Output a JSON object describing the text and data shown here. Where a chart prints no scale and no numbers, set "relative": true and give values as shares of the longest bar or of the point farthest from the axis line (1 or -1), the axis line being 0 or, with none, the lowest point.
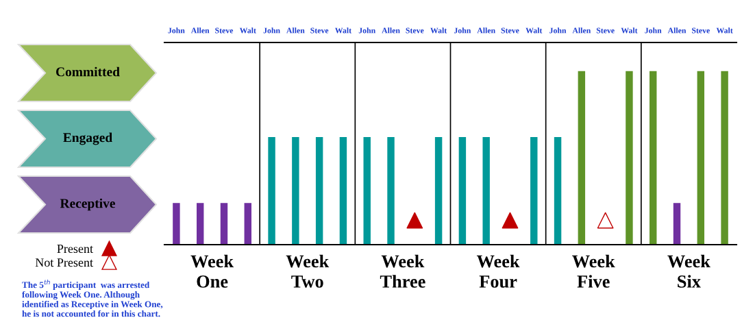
{
  "chart_data": {
    "type": "bar",
    "relative": true,
    "categories": [
      "John",
      "Allen",
      "Steve",
      "Walt",
      "John",
      "Allen",
      "Steve",
      "Walt",
      "John",
      "Allen",
      "Steve",
      "Walt",
      "John",
      "Allen",
      "Steve",
      "Walt",
      "John",
      "Allen",
      "Steve",
      "Walt",
      "John",
      "Allen",
      "Steve",
      "Walt"
    ],
    "series": [
      {
        "values": [
          0.24,
          0.24,
          0.24,
          0.24,
          0.62,
          0.62,
          0.62,
          0.62,
          0.62,
          0.62,
          null,
          0.62,
          0.62,
          0.62,
          null,
          0.62,
          0.62,
          1,
          null,
          1,
          1,
          0.24,
          1,
          1
        ],
        "colors": [
          "#7030a0",
          "#7030a0",
          "#7030a0",
          "#7030a0",
          "#009999",
          "#009999",
          "#009999",
          "#009999",
          "#009999",
          "#009999",
          null,
          "#009999",
          "#009999",
          "#009999",
          null,
          "#009999",
          "#009999",
          "#5f9428",
          null,
          "#5f9428",
          "#5f9428",
          "#7030a0",
          "#5f9428",
          "#5f9428"
        ]
      },
      {
        "type": "scatter",
        "name": "Present",
        "color": "#c00000",
        "marker": "triangle",
        "values": [
          null,
          null,
          null,
          null,
          null,
          null,
          null,
          null,
          null,
          null,
          0.14,
          null,
          null,
          null,
          0.14,
          null,
          null,
          null,
          null,
          null,
          null,
          null,
          null,
          null
        ]
      },
      {
        "type": "scatter",
        "name": "Not Present",
        "color": "#c00000",
        "marker": "triangle",
        "values": [
          null,
          null,
          null,
          null,
          null,
          null,
          null,
          null,
          null,
          null,
          null,
          null,
          null,
          null,
          null,
          null,
          null,
          null,
          0.14,
          null,
          null,
          null,
          null,
          null
        ]
      }
    ],
    "legend": "left",
    "grid": false,
    "annotations": [
      "Week One",
      "Week Two",
      "Week Three",
      "Week Four",
      "Week Five",
      "Week Six",
      "Committed",
      "Engaged",
      "Receptive",
      "The 5$^{th}$ participant  was arrested following Week One. Although identified as Receptive in Week One, he is not accounted for in this chart."
    ]
  }
}
